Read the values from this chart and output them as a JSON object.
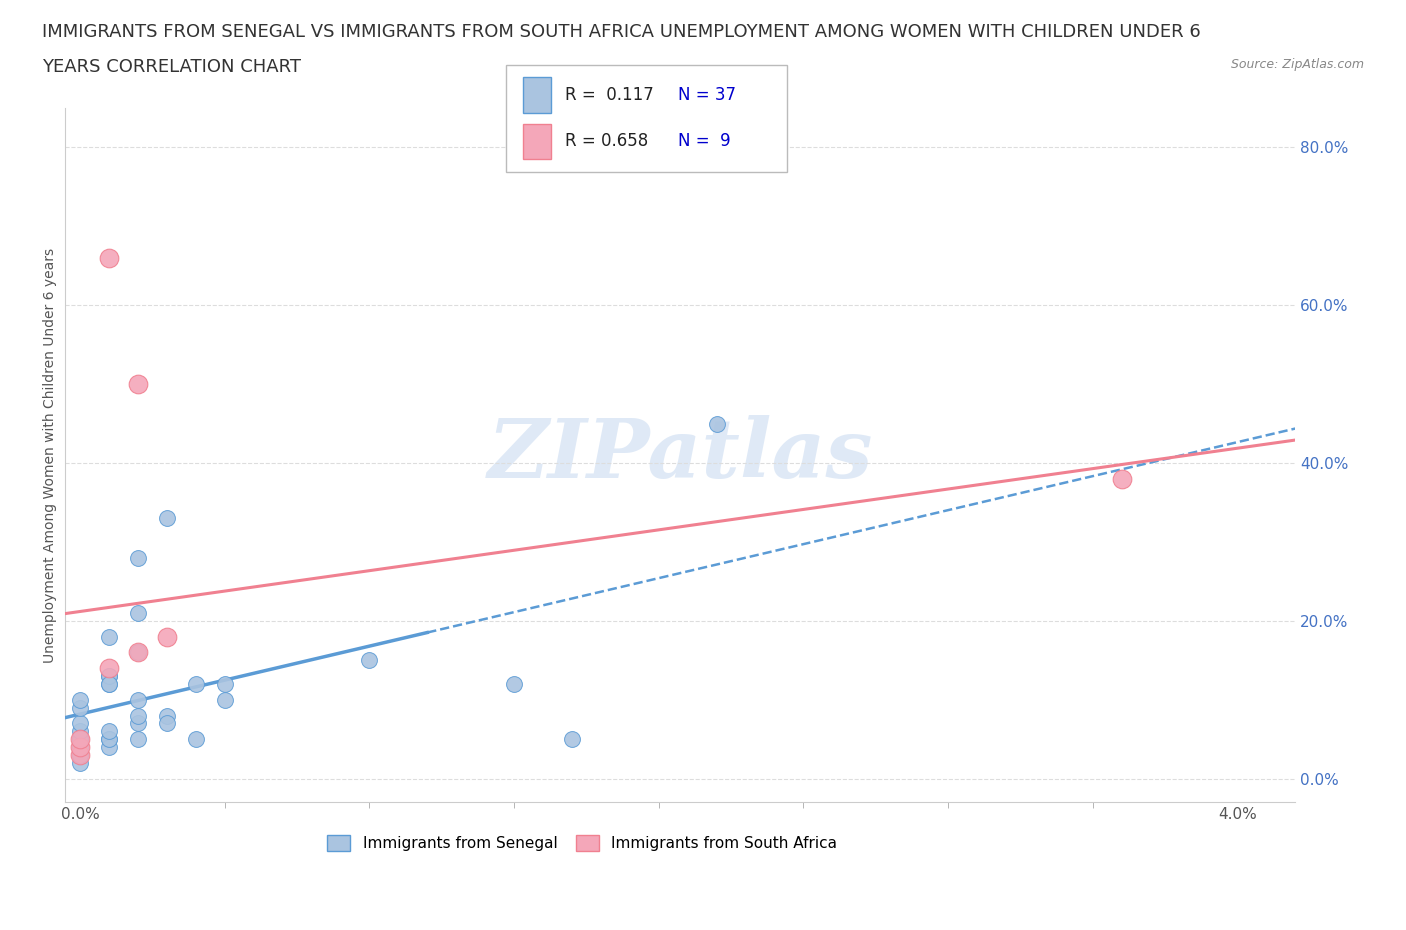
{
  "title_line1": "IMMIGRANTS FROM SENEGAL VS IMMIGRANTS FROM SOUTH AFRICA UNEMPLOYMENT AMONG WOMEN WITH CHILDREN UNDER 6",
  "title_line2": "YEARS CORRELATION CHART",
  "source_text": "Source: ZipAtlas.com",
  "ylabel_left": "Unemployment Among Women with Children Under 6 years",
  "watermark_text": "ZIPatlas",
  "senegal_color": "#aac4e0",
  "south_africa_color": "#f4a7b9",
  "senegal_line_color": "#5b9bd5",
  "south_africa_line_color": "#f08090",
  "r_value_color": "#0000cd",
  "legend_text_color": "#222222",
  "background_color": "#ffffff",
  "grid_color": "#dddddd",
  "right_axis_color": "#4472c4",
  "senegal_x": [
    0.0,
    0.0,
    0.0,
    0.0,
    0.0,
    0.0,
    0.0,
    0.0,
    0.0,
    0.0,
    0.001,
    0.001,
    0.001,
    0.001,
    0.001,
    0.001,
    0.001,
    0.001,
    0.001,
    0.002,
    0.002,
    0.002,
    0.002,
    0.002,
    0.002,
    0.002,
    0.003,
    0.003,
    0.003,
    0.004,
    0.004,
    0.005,
    0.005,
    0.01,
    0.015,
    0.017,
    0.022
  ],
  "senegal_y": [
    0.02,
    0.03,
    0.03,
    0.04,
    0.05,
    0.05,
    0.06,
    0.07,
    0.09,
    0.1,
    0.05,
    0.13,
    0.04,
    0.12,
    0.13,
    0.12,
    0.18,
    0.05,
    0.06,
    0.07,
    0.16,
    0.21,
    0.08,
    0.28,
    0.05,
    0.1,
    0.33,
    0.08,
    0.07,
    0.05,
    0.12,
    0.1,
    0.12,
    0.15,
    0.12,
    0.05,
    0.45
  ],
  "south_africa_x": [
    0.0,
    0.0,
    0.0,
    0.001,
    0.001,
    0.002,
    0.002,
    0.003,
    0.036
  ],
  "south_africa_y": [
    0.03,
    0.04,
    0.05,
    0.14,
    0.66,
    0.5,
    0.16,
    0.18,
    0.38
  ],
  "xmin": -0.0005,
  "xmax": 0.042,
  "ymin": -0.03,
  "ymax": 0.85,
  "yticks": [
    0.0,
    0.2,
    0.4,
    0.6,
    0.8
  ],
  "ytick_labels": [
    "0.0%",
    "20.0%",
    "40.0%",
    "60.0%",
    "80.0%"
  ],
  "xtick_left_label": "0.0%",
  "xtick_right_label": "4.0%",
  "title_fontsize": 13,
  "tick_fontsize": 11,
  "ylabel_fontsize": 10,
  "source_fontsize": 9,
  "watermark_fontsize": 60
}
